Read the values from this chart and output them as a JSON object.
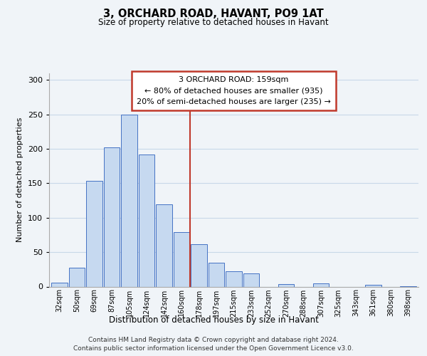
{
  "title": "3, ORCHARD ROAD, HAVANT, PO9 1AT",
  "subtitle": "Size of property relative to detached houses in Havant",
  "xlabel": "Distribution of detached houses by size in Havant",
  "ylabel": "Number of detached properties",
  "bar_labels": [
    "32sqm",
    "50sqm",
    "69sqm",
    "87sqm",
    "105sqm",
    "124sqm",
    "142sqm",
    "160sqm",
    "178sqm",
    "197sqm",
    "215sqm",
    "233sqm",
    "252sqm",
    "270sqm",
    "288sqm",
    "307sqm",
    "325sqm",
    "343sqm",
    "361sqm",
    "380sqm",
    "398sqm"
  ],
  "bar_values": [
    6,
    27,
    153,
    202,
    250,
    192,
    119,
    79,
    61,
    35,
    22,
    19,
    0,
    4,
    0,
    5,
    0,
    0,
    3,
    0,
    1
  ],
  "bar_color": "#c6d9f0",
  "bar_edge_color": "#4472c4",
  "vline_x": 7.5,
  "vline_color": "#c0392b",
  "ylim": [
    0,
    310
  ],
  "yticks": [
    0,
    50,
    100,
    150,
    200,
    250,
    300
  ],
  "annotation_title": "3 ORCHARD ROAD: 159sqm",
  "annotation_line1": "← 80% of detached houses are smaller (935)",
  "annotation_line2": "20% of semi-detached houses are larger (235) →",
  "footer_line1": "Contains HM Land Registry data © Crown copyright and database right 2024.",
  "footer_line2": "Contains public sector information licensed under the Open Government Licence v3.0.",
  "bg_color": "#f0f4f8",
  "grid_color": "#c8d8e8"
}
